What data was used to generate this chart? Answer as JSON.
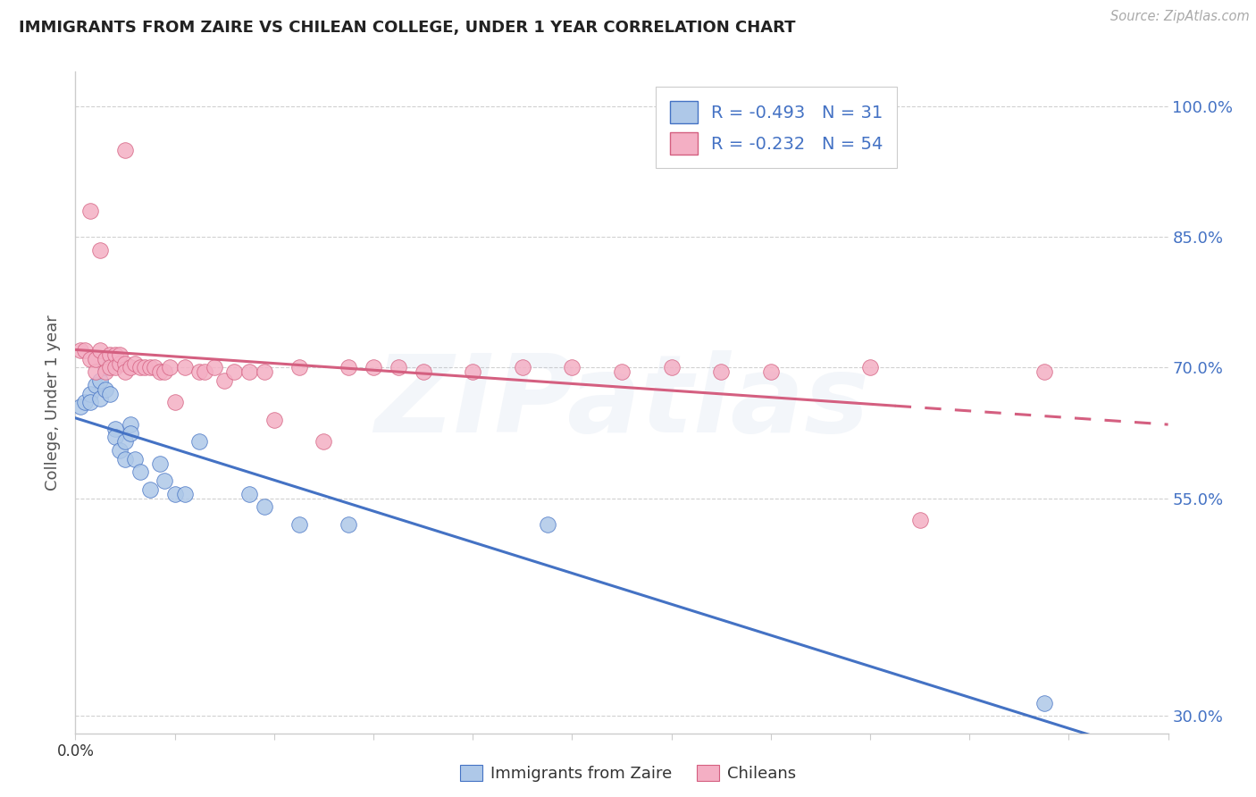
{
  "title": "IMMIGRANTS FROM ZAIRE VS CHILEAN COLLEGE, UNDER 1 YEAR CORRELATION CHART",
  "source": "Source: ZipAtlas.com",
  "ylabel": "College, Under 1 year",
  "legend_label1": "Immigrants from Zaire",
  "legend_label2": "Chileans",
  "R1": -0.493,
  "N1": 31,
  "R2": -0.232,
  "N2": 54,
  "color_blue": "#aec8e8",
  "color_pink": "#f4afc4",
  "line_color_blue": "#4472c4",
  "line_color_pink": "#d45f80",
  "xmin": 0.0,
  "xmax": 0.22,
  "ymin": 0.28,
  "ymax": 1.04,
  "watermark": "ZIPatlas",
  "background_color": "#ffffff",
  "grid_color": "#cccccc",
  "yticks": [
    0.3,
    0.55,
    0.7,
    0.85,
    1.0
  ],
  "ytick_labels": [
    "30.0%",
    "55.0%",
    "70.0%",
    "85.0%",
    "100.0%"
  ],
  "watermark_alpha": 0.12,
  "watermark_fontsize": 88,
  "title_fontsize": 13,
  "source_color": "#aaaaaa",
  "axis_color": "#cccccc",
  "blue_x": [
    0.001,
    0.002,
    0.003,
    0.003,
    0.004,
    0.005,
    0.005,
    0.006,
    0.006,
    0.007,
    0.008,
    0.008,
    0.009,
    0.01,
    0.01,
    0.011,
    0.011,
    0.012,
    0.013,
    0.015,
    0.017,
    0.018,
    0.02,
    0.022,
    0.025,
    0.035,
    0.038,
    0.045,
    0.055,
    0.095,
    0.195
  ],
  "blue_y": [
    0.655,
    0.66,
    0.67,
    0.66,
    0.68,
    0.685,
    0.665,
    0.7,
    0.675,
    0.67,
    0.63,
    0.62,
    0.605,
    0.615,
    0.595,
    0.635,
    0.625,
    0.595,
    0.58,
    0.56,
    0.59,
    0.57,
    0.555,
    0.555,
    0.615,
    0.555,
    0.54,
    0.52,
    0.52,
    0.52,
    0.315
  ],
  "pink_x": [
    0.001,
    0.002,
    0.003,
    0.004,
    0.004,
    0.005,
    0.006,
    0.006,
    0.007,
    0.007,
    0.008,
    0.008,
    0.009,
    0.009,
    0.01,
    0.01,
    0.011,
    0.012,
    0.013,
    0.014,
    0.015,
    0.016,
    0.017,
    0.018,
    0.019,
    0.02,
    0.022,
    0.025,
    0.026,
    0.028,
    0.03,
    0.032,
    0.035,
    0.038,
    0.04,
    0.045,
    0.05,
    0.055,
    0.06,
    0.065,
    0.07,
    0.08,
    0.09,
    0.1,
    0.11,
    0.12,
    0.13,
    0.14,
    0.16,
    0.17,
    0.195,
    0.003,
    0.005,
    0.01
  ],
  "pink_y": [
    0.72,
    0.72,
    0.71,
    0.695,
    0.71,
    0.72,
    0.71,
    0.695,
    0.715,
    0.7,
    0.715,
    0.7,
    0.705,
    0.715,
    0.705,
    0.695,
    0.7,
    0.705,
    0.7,
    0.7,
    0.7,
    0.7,
    0.695,
    0.695,
    0.7,
    0.66,
    0.7,
    0.695,
    0.695,
    0.7,
    0.685,
    0.695,
    0.695,
    0.695,
    0.64,
    0.7,
    0.615,
    0.7,
    0.7,
    0.7,
    0.695,
    0.695,
    0.7,
    0.7,
    0.695,
    0.7,
    0.695,
    0.695,
    0.7,
    0.525,
    0.695,
    0.88,
    0.835,
    0.95
  ]
}
